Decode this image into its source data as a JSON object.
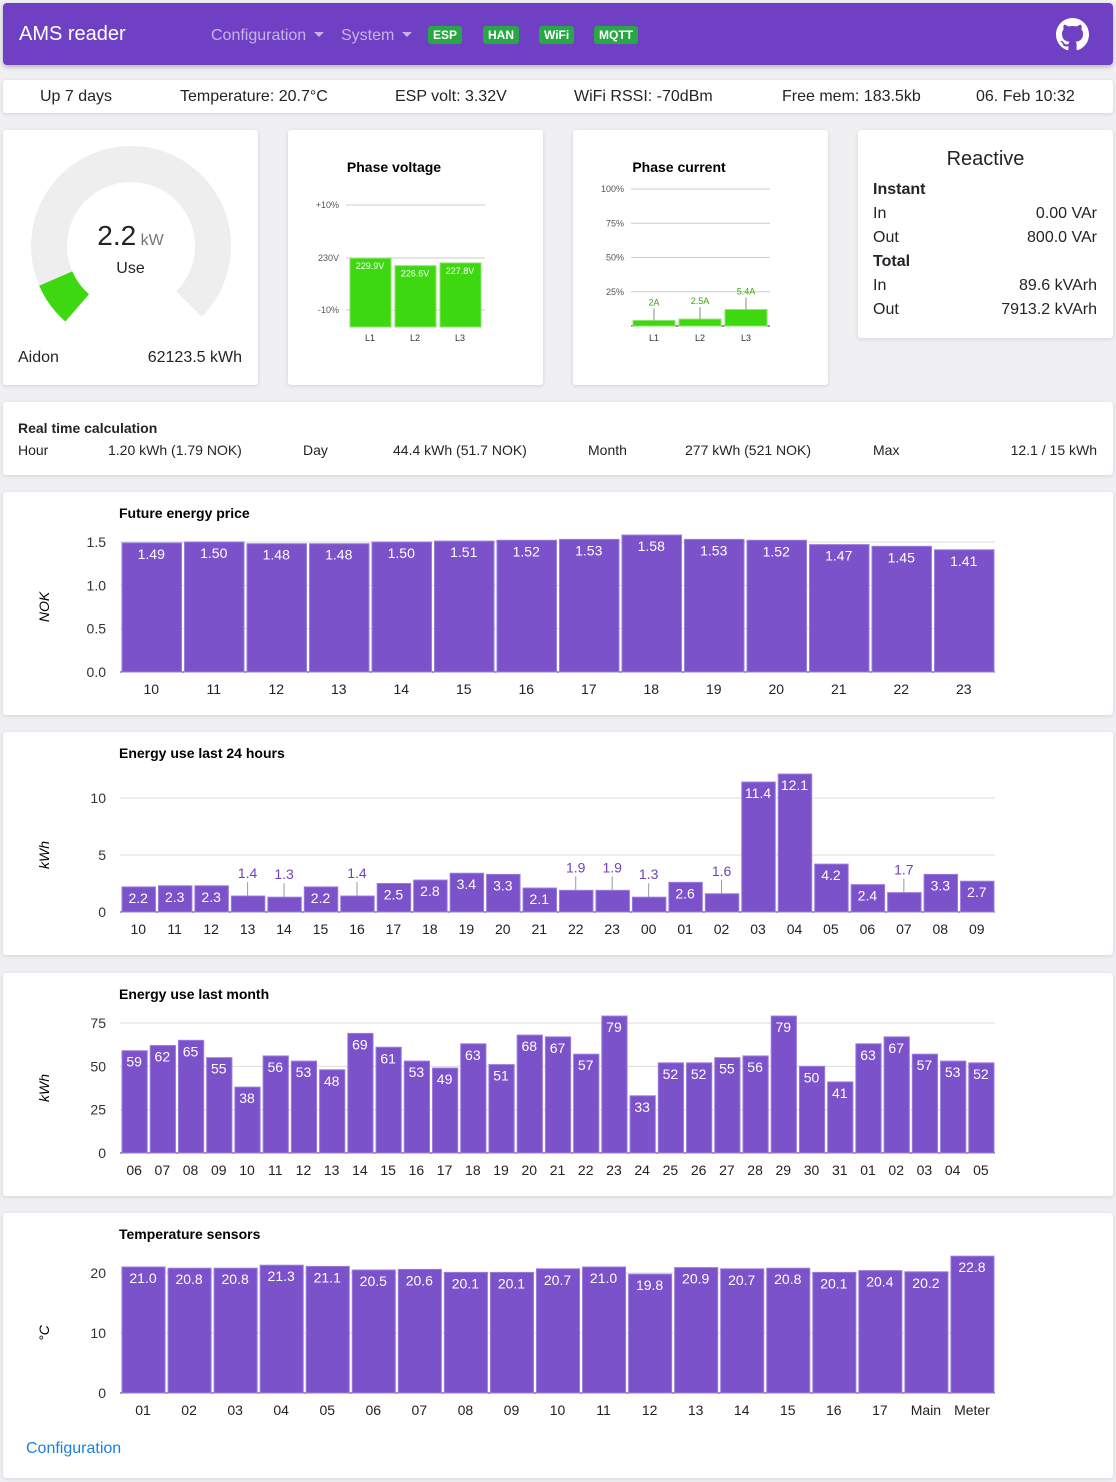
{
  "nav": {
    "title": "AMS reader",
    "menus": [
      "Configuration",
      "System"
    ],
    "badges": [
      "ESP",
      "HAN",
      "WiFi",
      "MQTT"
    ],
    "badge_color": "#28a745",
    "accent": "#7040c4"
  },
  "status": {
    "uptime": "Up 7 days",
    "temperature": "Temperature: 20.7°C",
    "esp_volt": "ESP volt: 3.32V",
    "rssi": "WiFi RSSI: -70dBm",
    "free_mem": "Free mem: 183.5kb",
    "datetime": "06. Feb 10:32"
  },
  "gauge": {
    "value": "2.2",
    "unit": "kW",
    "label": "Use",
    "fraction": 0.08,
    "meter": "Aidon",
    "total": "62123.5 kWh",
    "color": "#3dd80f"
  },
  "phase_voltage": {
    "title": "Phase voltage",
    "ticks": [
      "+10%",
      "230V",
      "-10%"
    ],
    "phases": [
      "L1",
      "L2",
      "L3"
    ],
    "volts": [
      229.9,
      226.6,
      227.8
    ],
    "labels": [
      "229.9V",
      "226.6V",
      "227.8V"
    ]
  },
  "phase_current": {
    "title": "Phase current",
    "ticks": [
      "100%",
      "75%",
      "50%",
      "25%"
    ],
    "phases": [
      "L1",
      "L2",
      "L3"
    ],
    "percent": [
      4,
      5,
      12
    ],
    "labels": [
      "2A",
      "2.5A",
      "5.4A"
    ]
  },
  "reactive": {
    "title": "Reactive",
    "instant": "Instant",
    "total": "Total",
    "in": "In",
    "out": "Out",
    "instant_in": "0.00 VAr",
    "instant_out": "800.0 VAr",
    "total_in": "89.6 kVArh",
    "total_out": "7913.2 kVArh"
  },
  "realtime": {
    "title": "Real time calculation",
    "hour_label": "Hour",
    "hour": "1.20 kWh (1.79 NOK)",
    "day_label": "Day",
    "day": "44.4 kWh (51.7 NOK)",
    "month_label": "Month",
    "month": "277 kWh (521 NOK)",
    "max_label": "Max",
    "max": "12.1 / 15 kWh"
  },
  "chart_data": [
    {
      "type": "bar",
      "title": "Future energy price",
      "ylabel": "NOK",
      "ylim": [
        0,
        1.5
      ],
      "yticks": [
        "0.0",
        "0.5",
        "1.0",
        "1.5"
      ],
      "ytick_values": [
        0,
        0.5,
        1,
        1.5
      ],
      "grid": true,
      "categories": [
        "10",
        "11",
        "12",
        "13",
        "14",
        "15",
        "16",
        "17",
        "18",
        "19",
        "20",
        "21",
        "22",
        "23"
      ],
      "values": [
        1.49,
        1.5,
        1.48,
        1.48,
        1.5,
        1.51,
        1.52,
        1.53,
        1.58,
        1.53,
        1.52,
        1.47,
        1.45,
        1.41
      ],
      "labels": [
        "1.49",
        "1.50",
        "1.48",
        "1.48",
        "1.50",
        "1.51",
        "1.52",
        "1.53",
        "1.58",
        "1.53",
        "1.52",
        "1.47",
        "1.45",
        "1.41"
      ]
    },
    {
      "type": "bar",
      "title": "Energy use last 24 hours",
      "ylabel": "kWh",
      "ylim": [
        0,
        10
      ],
      "yticks": [
        "0",
        "5",
        "10"
      ],
      "ytick_values": [
        0,
        5,
        10
      ],
      "grid": true,
      "categories": [
        "10",
        "11",
        "12",
        "13",
        "14",
        "15",
        "16",
        "17",
        "18",
        "19",
        "20",
        "21",
        "22",
        "23",
        "00",
        "01",
        "02",
        "03",
        "04",
        "05",
        "06",
        "07",
        "08",
        "09"
      ],
      "values": [
        2.2,
        2.3,
        2.3,
        1.4,
        1.3,
        2.2,
        1.4,
        2.5,
        2.8,
        3.4,
        3.3,
        2.1,
        1.9,
        1.9,
        1.3,
        2.6,
        1.6,
        11.4,
        12.1,
        4.2,
        2.4,
        1.7,
        3.3,
        2.7
      ],
      "labels": [
        "2.2",
        "2.3",
        "2.3",
        "1.4",
        "1.3",
        "2.2",
        "1.4",
        "2.5",
        "2.8",
        "3.4",
        "3.3",
        "2.1",
        "1.9",
        "1.9",
        "1.3",
        "2.6",
        "1.6",
        "11.4",
        "12.1",
        "4.2",
        "2.4",
        "1.7",
        "3.3",
        "2.7"
      ]
    },
    {
      "type": "bar",
      "title": "Energy use last month",
      "ylabel": "kWh",
      "ylim": [
        0,
        75
      ],
      "yticks": [
        "0",
        "25",
        "50",
        "75"
      ],
      "ytick_values": [
        0,
        25,
        50,
        75
      ],
      "grid": true,
      "categories": [
        "06",
        "07",
        "08",
        "09",
        "10",
        "11",
        "12",
        "13",
        "14",
        "15",
        "16",
        "17",
        "18",
        "19",
        "20",
        "21",
        "22",
        "23",
        "24",
        "25",
        "26",
        "27",
        "28",
        "29",
        "30",
        "31",
        "01",
        "02",
        "03",
        "04",
        "05"
      ],
      "values": [
        59,
        62,
        65,
        55,
        38,
        56,
        53,
        48,
        69,
        61,
        53,
        49,
        63,
        51,
        68,
        67,
        57,
        79,
        33,
        52,
        52,
        55,
        56,
        79,
        50,
        41,
        63,
        67,
        57,
        53,
        52
      ],
      "labels": [
        "59",
        "62",
        "65",
        "55",
        "38",
        "56",
        "53",
        "48",
        "69",
        "61",
        "53",
        "49",
        "63",
        "51",
        "68",
        "67",
        "57",
        "79",
        "33",
        "52",
        "52",
        "55",
        "56",
        "79",
        "50",
        "41",
        "63",
        "67",
        "57",
        "53",
        "52"
      ]
    },
    {
      "type": "bar",
      "title": "Temperature sensors",
      "ylabel": "°C",
      "ylim": [
        0,
        20
      ],
      "yticks": [
        "0",
        "10",
        "20"
      ],
      "ytick_values": [
        0,
        10,
        20
      ],
      "grid": true,
      "categories": [
        "01",
        "02",
        "03",
        "04",
        "05",
        "06",
        "07",
        "08",
        "09",
        "10",
        "11",
        "12",
        "13",
        "14",
        "15",
        "16",
        "17",
        "Main",
        "Meter"
      ],
      "values": [
        21.0,
        20.8,
        20.8,
        21.3,
        21.1,
        20.5,
        20.6,
        20.1,
        20.1,
        20.7,
        21.0,
        19.8,
        20.9,
        20.7,
        20.8,
        20.1,
        20.4,
        20.2,
        22.8
      ],
      "labels": [
        "21.0",
        "20.8",
        "20.8",
        "21.3",
        "21.1",
        "20.5",
        "20.6",
        "20.1",
        "20.1",
        "20.7",
        "21.0",
        "19.8",
        "20.9",
        "20.7",
        "20.8",
        "20.1",
        "20.4",
        "20.2",
        "22.8"
      ]
    }
  ],
  "bar_color": "#7b52c9",
  "footer": {
    "link": "Configuration"
  }
}
